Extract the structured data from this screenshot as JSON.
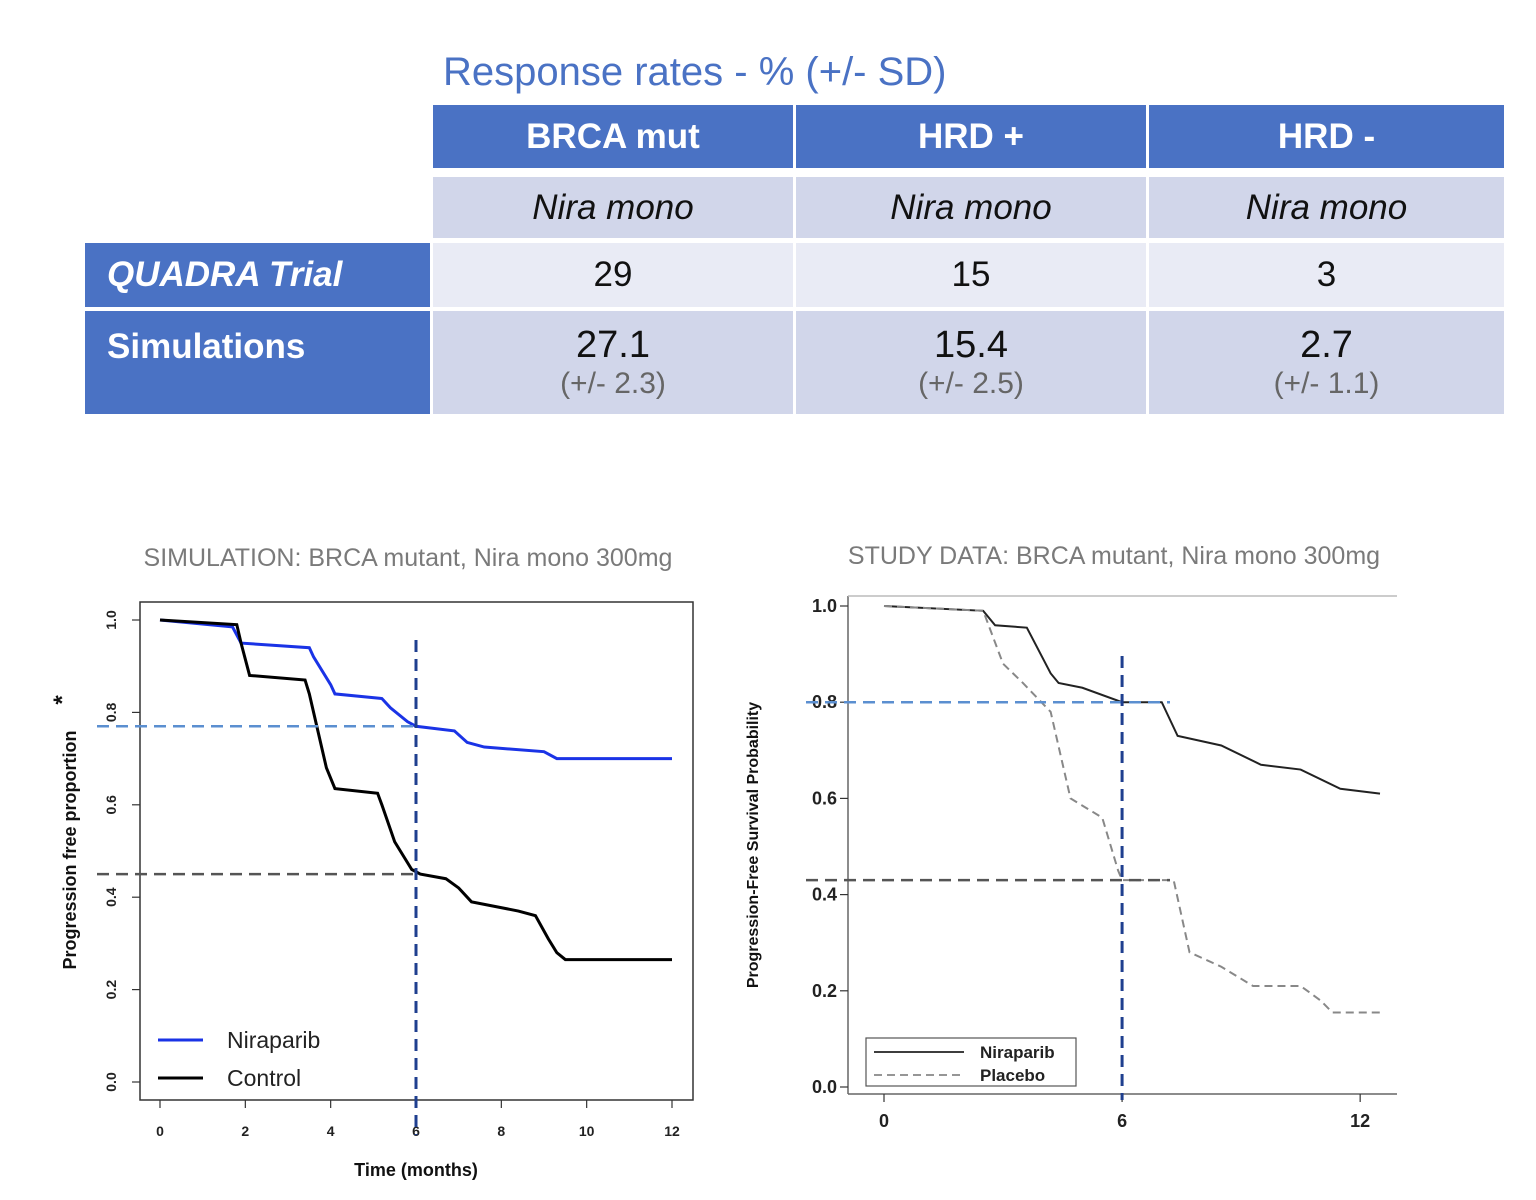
{
  "table": {
    "title": "Response rates - % (+/- SD)",
    "columns": [
      "BRCA mut",
      "HRD +",
      "HRD -"
    ],
    "subheader": [
      "Nira mono",
      "Nira mono",
      "Nira mono"
    ],
    "rows": [
      {
        "label": "QUADRA Trial",
        "values": [
          "29",
          "15",
          "3"
        ]
      },
      {
        "label": "Simulations",
        "values": [
          "27.1",
          "15.4",
          "2.7"
        ],
        "sd": [
          "(+/- 2.3)",
          "(+/- 2.5)",
          "(+/- 1.1)"
        ]
      }
    ]
  },
  "chart_data": [
    {
      "type": "line",
      "title": "SIMULATION: BRCA mutant, Nira mono 300mg",
      "xlabel": "Time (months)",
      "ylabel": "Progression free proportion",
      "ylabel_mark": "*",
      "xlim": [
        0,
        12
      ],
      "ylim": [
        0,
        1
      ],
      "xticks": [
        "0",
        "2",
        "4",
        "6",
        "8",
        "10",
        "12"
      ],
      "yticks": [
        "0.0",
        "0.2",
        "0.4",
        "0.6",
        "0.8",
        "1.0"
      ],
      "series": [
        {
          "name": "Niraparib",
          "color": "#1a33e6",
          "dash": "solid",
          "x": [
            0,
            1.7,
            1.9,
            3.5,
            3.6,
            4.0,
            4.1,
            5.2,
            5.4,
            5.8,
            6.0,
            6.9,
            7.2,
            7.6,
            9.0,
            9.3,
            12
          ],
          "y": [
            1.0,
            0.985,
            0.95,
            0.94,
            0.92,
            0.86,
            0.84,
            0.83,
            0.81,
            0.78,
            0.77,
            0.76,
            0.735,
            0.725,
            0.715,
            0.7,
            0.7
          ]
        },
        {
          "name": "Control",
          "color": "#000000",
          "dash": "solid",
          "x": [
            0,
            1.8,
            1.9,
            2.1,
            3.4,
            3.5,
            3.7,
            3.9,
            4.1,
            5.1,
            5.2,
            5.5,
            5.9,
            6.1,
            6.7,
            7.0,
            7.3,
            8.4,
            8.8,
            9.1,
            9.3,
            9.5,
            12
          ],
          "y": [
            1.0,
            0.99,
            0.95,
            0.88,
            0.87,
            0.84,
            0.76,
            0.68,
            0.635,
            0.625,
            0.6,
            0.52,
            0.46,
            0.45,
            0.44,
            0.42,
            0.39,
            0.37,
            0.36,
            0.31,
            0.28,
            0.265,
            0.265
          ]
        }
      ],
      "reference_lines": [
        {
          "axis": "y",
          "value": 0.77,
          "color": "#5b8fd0"
        },
        {
          "axis": "y",
          "value": 0.45,
          "color": "#555555"
        },
        {
          "axis": "x",
          "value": 6,
          "color": "#1f3f8f"
        }
      ],
      "legend": {
        "position": "bottom-left",
        "entries": [
          "Niraparib",
          "Control"
        ]
      }
    },
    {
      "type": "line",
      "title": "STUDY DATA: BRCA mutant, Nira mono 300mg",
      "xlabel": "",
      "ylabel": "Progression-Free Survival Probability",
      "xlim": [
        0,
        12.5
      ],
      "ylim": [
        0,
        1
      ],
      "xticks": [
        "0",
        "6",
        "12"
      ],
      "yticks": [
        "0.0",
        "0.2",
        "0.4",
        "0.6",
        "0.8",
        "1.0"
      ],
      "series": [
        {
          "name": "Niraparib",
          "color": "#222222",
          "dash": "solid",
          "x": [
            0,
            2.5,
            2.8,
            3.6,
            4.2,
            4.4,
            5.0,
            6.0,
            7.0,
            7.4,
            8.5,
            9.5,
            10.5,
            11.5,
            12.5
          ],
          "y": [
            1.0,
            0.99,
            0.96,
            0.955,
            0.86,
            0.84,
            0.83,
            0.8,
            0.8,
            0.73,
            0.71,
            0.67,
            0.66,
            0.62,
            0.61
          ]
        },
        {
          "name": "Placebo",
          "color": "#888888",
          "dash": "dashed",
          "x": [
            0,
            2.5,
            3.0,
            3.5,
            4.2,
            4.7,
            5.5,
            5.9,
            6.0,
            7.3,
            7.7,
            8.5,
            9.3,
            10.5,
            11.0,
            11.3,
            12.5
          ],
          "y": [
            1.0,
            0.99,
            0.88,
            0.84,
            0.78,
            0.6,
            0.56,
            0.45,
            0.43,
            0.43,
            0.28,
            0.25,
            0.21,
            0.21,
            0.18,
            0.155,
            0.155
          ]
        }
      ],
      "reference_lines": [
        {
          "axis": "y",
          "value": 0.8,
          "color": "#5b8fd0"
        },
        {
          "axis": "y",
          "value": 0.43,
          "color": "#555555"
        },
        {
          "axis": "x",
          "value": 6,
          "color": "#1f3f8f"
        }
      ],
      "legend": {
        "position": "bottom-left",
        "entries": [
          "Niraparib",
          "Placebo"
        ]
      }
    }
  ]
}
